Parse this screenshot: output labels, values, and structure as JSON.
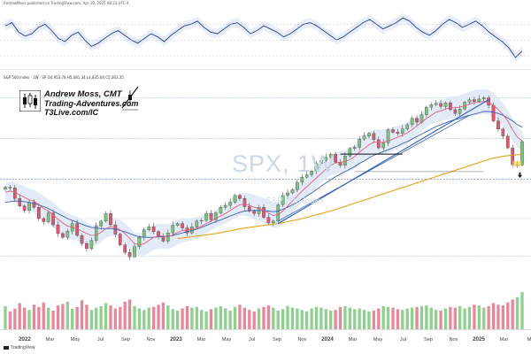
{
  "header": {
    "published": "AndrewMoss published on TradingView.com, Apr 10, 2025 08:23 UTC-4",
    "ohlc": "S&P 500 Index · 1W · SP O4,953.78 H5,481.34 L4,835.04 C5,363.35"
  },
  "brand": {
    "name": "Andrew Moss, CMT",
    "site": "Trading-Adventures.com",
    "link": "T3Live.com/IC"
  },
  "watermark": {
    "ticker": "SPX, 1W",
    "sub": "S&P 500 Index"
  },
  "footer": {
    "tv_label": "TradingView"
  },
  "chart_data": [
    {
      "type": "line",
      "panel": "oscillator",
      "series": [
        {
          "color": "#2b3e9e",
          "values": [
            68,
            72,
            60,
            55,
            58,
            66,
            70,
            62,
            52,
            48,
            56,
            60,
            50,
            42,
            46,
            52,
            58,
            62,
            56,
            50,
            46,
            52,
            58,
            54,
            48,
            56,
            62,
            68,
            70,
            74,
            66,
            60,
            58,
            64,
            70,
            72,
            66,
            58,
            62,
            68,
            64,
            60,
            54,
            58,
            64,
            70,
            72,
            68,
            62,
            56,
            50,
            54,
            60,
            66,
            72,
            76,
            70,
            64,
            68,
            72,
            78,
            74,
            66,
            60,
            56,
            62,
            70,
            76,
            72,
            66,
            70,
            74,
            68,
            60,
            54,
            48,
            40,
            28,
            36
          ]
        }
      ]
    },
    {
      "type": "candlestick",
      "panel": "price",
      "x_tick_labels": [
        "2022",
        "Mar",
        "May",
        "Jul",
        "Sep",
        "Nov",
        "2023",
        "Mar",
        "May",
        "Jul",
        "Sep",
        "Nov",
        "2024",
        "Mar",
        "May",
        "Jul",
        "Sep",
        "Nov",
        "2025",
        "Mar",
        "M"
      ],
      "series": [
        {
          "name": "price",
          "color": "#5aa86a",
          "values": [
            4700,
            4690,
            4520,
            4400,
            4330,
            4460,
            4380,
            4200,
            4150,
            4290,
            4100,
            3960,
            3900,
            4000,
            4120,
            3930,
            3800,
            3720,
            3850,
            4080,
            4160,
            4280,
            4100,
            3950,
            3780,
            3660,
            3590,
            3750,
            3900,
            4020,
            4070,
            3990,
            3920,
            3840,
            3970,
            4090,
            4120,
            4050,
            3970,
            4070,
            4160,
            4170,
            4280,
            4180,
            4290,
            4380,
            4410,
            4460,
            4570,
            4520,
            4390,
            4320,
            4280,
            4380,
            4220,
            4130,
            4160,
            4420,
            4570,
            4610,
            4660,
            4780,
            4860,
            4900,
            4960,
            5080,
            5130,
            5180,
            5230,
            5100,
            5050,
            5200,
            5320,
            5340,
            5470,
            5520,
            5560,
            5460,
            5330,
            5410,
            5620,
            5580,
            5560,
            5630,
            5700,
            5800,
            5740,
            5860,
            5980,
            6020,
            6040,
            5990,
            6050,
            5940,
            5880,
            5950,
            6060,
            6100,
            6070,
            6110,
            6130,
            6010,
            5760,
            5630,
            5520,
            5330,
            5060,
            5060,
            5430
          ]
        },
        {
          "name": "moving average fast",
          "color": "#e0607a",
          "values": [
            4620,
            4640,
            4620,
            4580,
            4540,
            4500,
            4480,
            4420,
            4360,
            4320,
            4260,
            4190,
            4130,
            4080,
            4060,
            4040,
            4000,
            3960,
            3930,
            3940,
            3980,
            4040,
            4070,
            4060,
            4020,
            3960,
            3880,
            3800,
            3780,
            3800,
            3850,
            3900,
            3920,
            3920,
            3910,
            3940,
            3980,
            4010,
            4020,
            4030,
            4050,
            4080,
            4120,
            4160,
            4200,
            4240,
            4280,
            4330,
            4380,
            4420,
            4430,
            4410,
            4380,
            4360,
            4330,
            4290,
            4250,
            4260,
            4320,
            4400,
            4480,
            4560,
            4640,
            4710,
            4780,
            4850,
            4920,
            4990,
            5050,
            5090,
            5100,
            5110,
            5140,
            5190,
            5260,
            5320,
            5380,
            5420,
            5420,
            5420,
            5440,
            5470,
            5500,
            5530,
            5570,
            5620,
            5680,
            5740,
            5800,
            5850,
            5900,
            5920,
            5950,
            5970,
            5970,
            5980,
            6000,
            6030,
            6050,
            6060,
            6070,
            6060,
            6010,
            5940,
            5860,
            5760,
            5620,
            5500,
            5440
          ]
        },
        {
          "name": "moving average mid",
          "color": "#3d5eb4",
          "values": [
            4460,
            4470,
            4480,
            4480,
            4470,
            4460,
            4440,
            4420,
            4390,
            4360,
            4320,
            4280,
            4240,
            4200,
            4170,
            4140,
            4110,
            4080,
            4060,
            4050,
            4040,
            4040,
            4040,
            4030,
            4010,
            3990,
            3960,
            3930,
            3910,
            3900,
            3900,
            3900,
            3910,
            3910,
            3920,
            3930,
            3950,
            3970,
            3990,
            4010,
            4030,
            4060,
            4090,
            4120,
            4150,
            4180,
            4210,
            4240,
            4270,
            4300,
            4320,
            4330,
            4330,
            4330,
            4330,
            4320,
            4310,
            4320,
            4350,
            4380,
            4420,
            4460,
            4510,
            4560,
            4610,
            4660,
            4720,
            4770,
            4820,
            4870,
            4910,
            4950,
            4990,
            5030,
            5080,
            5120,
            5170,
            5210,
            5240,
            5270,
            5300,
            5330,
            5360,
            5400,
            5430,
            5470,
            5510,
            5550,
            5590,
            5630,
            5670,
            5700,
            5730,
            5760,
            5780,
            5800,
            5830,
            5850,
            5870,
            5890,
            5910,
            5910,
            5900,
            5880,
            5850,
            5810,
            5760,
            5700,
            5660
          ]
        },
        {
          "name": "moving average slow",
          "color": "#e8a317",
          "values": [
            null,
            null,
            null,
            null,
            null,
            null,
            null,
            null,
            null,
            null,
            null,
            null,
            null,
            null,
            null,
            null,
            null,
            null,
            null,
            null,
            null,
            null,
            null,
            null,
            null,
            null,
            null,
            null,
            null,
            null,
            null,
            null,
            null,
            null,
            null,
            null,
            3880,
            3890,
            3900,
            3910,
            3920,
            3930,
            3940,
            3950,
            3960,
            3975,
            3990,
            4005,
            4020,
            4035,
            4050,
            4060,
            4070,
            4080,
            4090,
            4100,
            4110,
            4120,
            4135,
            4150,
            4165,
            4180,
            4200,
            4220,
            4240,
            4260,
            4280,
            4300,
            4320,
            4345,
            4370,
            4395,
            4420,
            4445,
            4470,
            4495,
            4520,
            4545,
            4570,
            4595,
            4620,
            4645,
            4670,
            4695,
            4720,
            4745,
            4770,
            4795,
            4820,
            4845,
            4870,
            4895,
            4920,
            4945,
            4970,
            4995,
            5020,
            5045,
            5070,
            5095,
            5120,
            5145,
            5165,
            5180,
            5195,
            5205,
            5215,
            5220,
            5225
          ]
        }
      ]
    },
    {
      "type": "bar",
      "panel": "volume",
      "values": [
        62,
        48,
        55,
        70,
        58,
        52,
        66,
        60,
        72,
        58,
        50,
        64,
        68,
        74,
        55,
        60,
        78,
        66,
        52,
        58,
        62,
        70,
        64,
        56,
        60,
        74,
        80,
        62,
        56,
        52,
        58,
        60,
        66,
        72,
        64,
        54,
        50,
        56,
        62,
        58,
        60,
        52,
        48,
        54,
        58,
        62,
        56,
        50,
        60,
        66,
        58,
        52,
        48,
        56,
        60,
        64,
        58,
        50,
        54,
        62,
        58,
        56,
        52,
        48,
        56,
        60,
        58,
        54,
        50,
        52,
        60,
        62,
        58,
        54,
        56,
        52,
        48,
        50,
        56,
        62,
        60,
        58,
        54,
        52,
        56,
        58,
        60,
        62,
        64,
        58,
        52,
        50,
        56,
        60,
        58,
        62,
        56,
        60,
        66,
        64,
        58,
        62,
        70,
        66,
        64,
        72,
        80,
        86,
        100
      ]
    }
  ]
}
